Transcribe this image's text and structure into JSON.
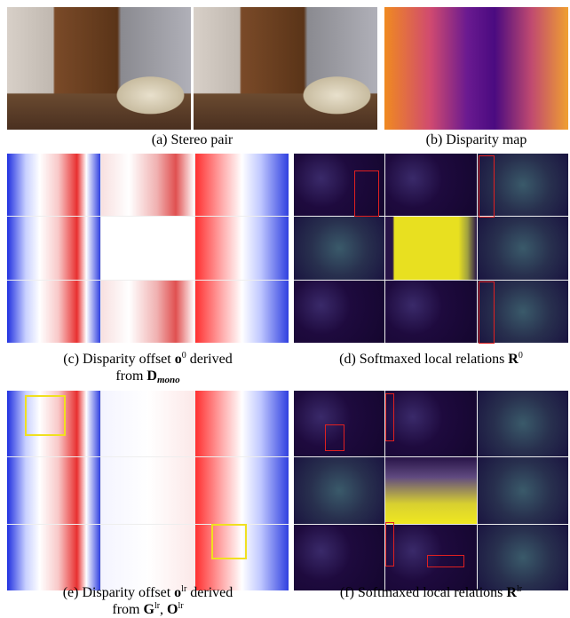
{
  "captions": {
    "a": "(a) Stereo pair",
    "b": "(b) Disparity map",
    "c": {
      "line1": [
        "(c) Disparity offset ",
        "o",
        "0",
        " derived"
      ],
      "line2": [
        "from ",
        "D",
        "mono"
      ]
    },
    "d": [
      "(d) Softmaxed local relations ",
      "R",
      "0"
    ],
    "e": {
      "line1": [
        "(e) Disparity offset ",
        "o",
        "lr",
        " derived"
      ],
      "line2": [
        "from ",
        "G",
        "lr",
        ", ",
        "O",
        "lr"
      ]
    },
    "f": [
      "(f) Softmaxed local relations ",
      "R",
      "lr"
    ]
  }
}
